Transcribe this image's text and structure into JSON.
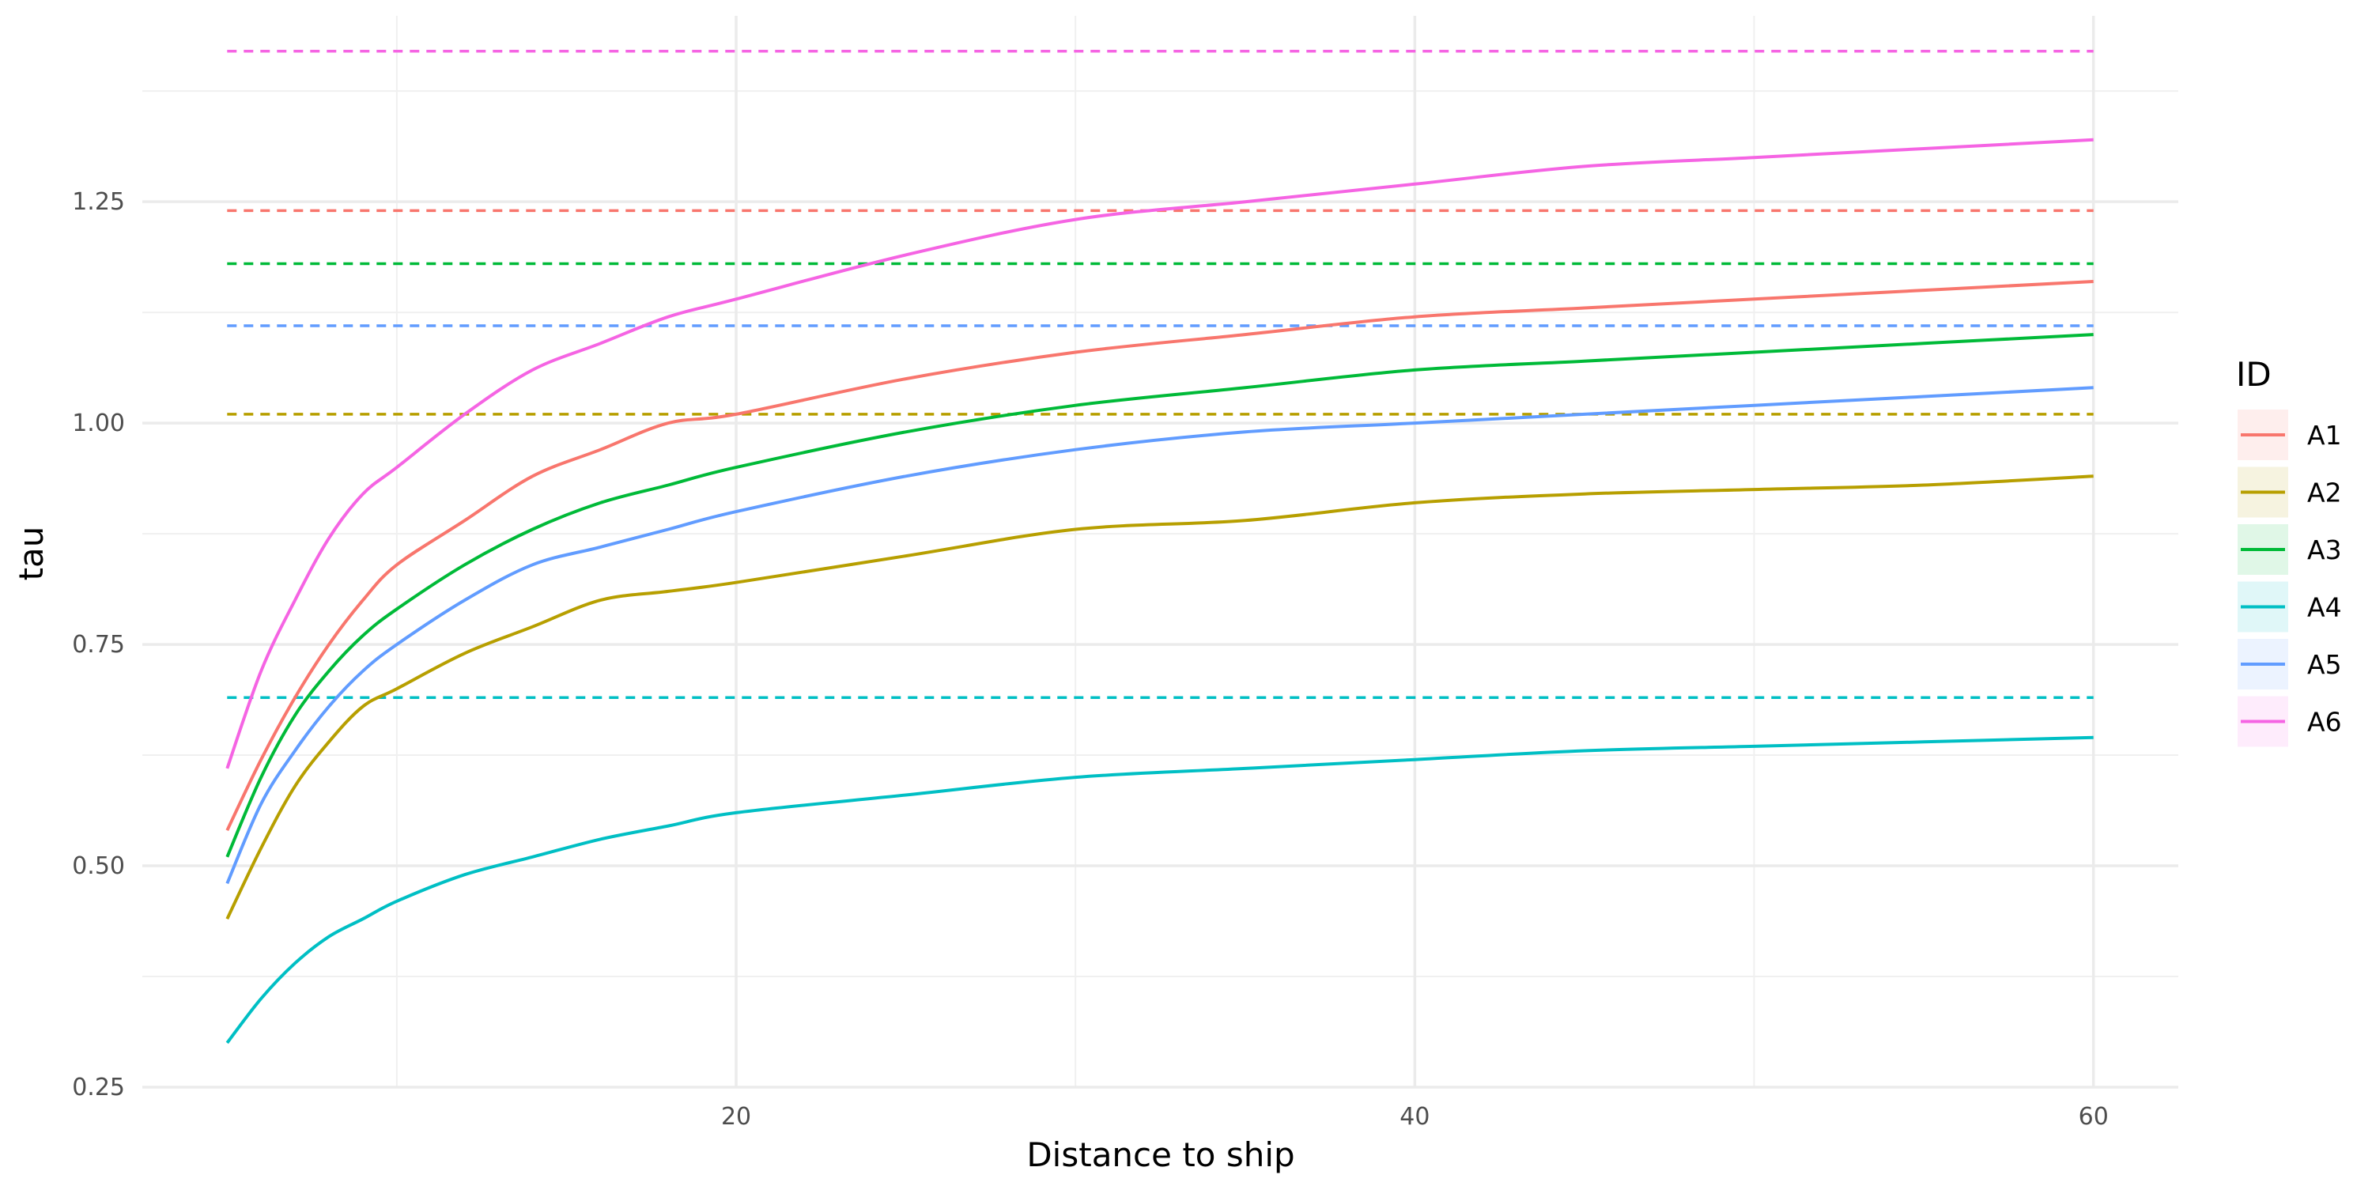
{
  "chart_data": {
    "type": "line",
    "xlabel": "Distance to ship",
    "ylabel": "tau",
    "xlim": [
      2.5,
      62.5
    ],
    "ylim": [
      0.25,
      1.46
    ],
    "x_ticks": [
      20,
      40,
      60
    ],
    "x_tick_labels": [
      "20",
      "40",
      "60"
    ],
    "y_ticks": [
      0.25,
      0.5,
      0.75,
      1.0,
      1.25
    ],
    "y_tick_labels": [
      "0.25",
      "0.50",
      "0.75",
      "1.00",
      "1.25"
    ],
    "grid": true,
    "legend": {
      "title": "ID",
      "position": "right"
    },
    "x": [
      5,
      6,
      7,
      8,
      9,
      10,
      12,
      14,
      16,
      18,
      20,
      25,
      30,
      35,
      40,
      45,
      50,
      55,
      60
    ],
    "series": [
      {
        "name": "A1",
        "color": "#F8766D",
        "asymptote": 1.24,
        "values": [
          0.54,
          0.62,
          0.69,
          0.75,
          0.8,
          0.84,
          0.89,
          0.94,
          0.97,
          1.0,
          1.01,
          1.05,
          1.08,
          1.1,
          1.12,
          1.13,
          1.14,
          1.15,
          1.16
        ]
      },
      {
        "name": "A2",
        "color": "#B79F00",
        "asymptote": 1.01,
        "values": [
          0.44,
          0.52,
          0.59,
          0.64,
          0.68,
          0.7,
          0.74,
          0.77,
          0.8,
          0.81,
          0.82,
          0.85,
          0.88,
          0.89,
          0.91,
          0.92,
          0.925,
          0.93,
          0.94
        ]
      },
      {
        "name": "A3",
        "color": "#00BA38",
        "asymptote": 1.18,
        "values": [
          0.51,
          0.6,
          0.67,
          0.72,
          0.76,
          0.79,
          0.84,
          0.88,
          0.91,
          0.93,
          0.95,
          0.99,
          1.02,
          1.04,
          1.06,
          1.07,
          1.08,
          1.09,
          1.1
        ]
      },
      {
        "name": "A4",
        "color": "#00BFC4",
        "asymptote": 0.69,
        "values": [
          0.3,
          0.35,
          0.39,
          0.42,
          0.44,
          0.46,
          0.49,
          0.51,
          0.53,
          0.545,
          0.56,
          0.58,
          0.6,
          0.61,
          0.62,
          0.63,
          0.635,
          0.64,
          0.645
        ]
      },
      {
        "name": "A5",
        "color": "#619CFF",
        "asymptote": 1.11,
        "values": [
          0.48,
          0.57,
          0.63,
          0.68,
          0.72,
          0.75,
          0.8,
          0.84,
          0.86,
          0.88,
          0.9,
          0.94,
          0.97,
          0.99,
          1.0,
          1.01,
          1.02,
          1.03,
          1.04
        ]
      },
      {
        "name": "A6",
        "color": "#F564E3",
        "asymptote": 1.42,
        "values": [
          0.61,
          0.72,
          0.8,
          0.87,
          0.92,
          0.95,
          1.01,
          1.06,
          1.09,
          1.12,
          1.14,
          1.19,
          1.23,
          1.25,
          1.27,
          1.29,
          1.3,
          1.31,
          1.32
        ]
      }
    ]
  }
}
